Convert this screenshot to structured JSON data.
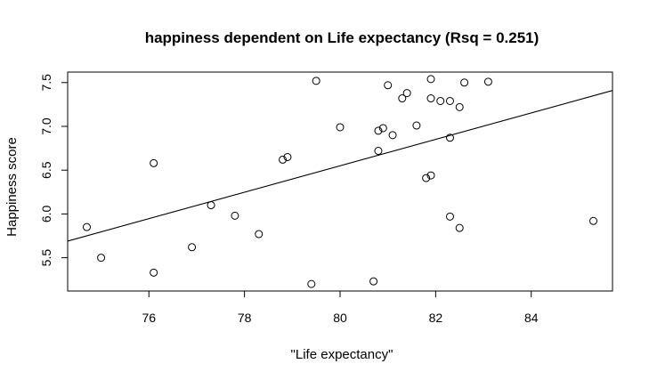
{
  "chart_data": {
    "type": "scatter",
    "title": "happiness dependent on Life expectancy (Rsq = 0.251)",
    "xlabel": "\"Life expectancy\"",
    "ylabel": "Happiness score",
    "xlim": [
      74.3,
      85.7
    ],
    "ylim": [
      5.12,
      7.62
    ],
    "x_ticks": [
      76,
      78,
      80,
      82,
      84
    ],
    "x_tick_labels": [
      "76",
      "78",
      "80",
      "82",
      "84"
    ],
    "y_ticks": [
      5.5,
      6.0,
      6.5,
      7.0,
      7.5
    ],
    "y_tick_labels": [
      "5.5",
      "6.0",
      "6.5",
      "7.0",
      "7.5"
    ],
    "grid": false,
    "legend": "none",
    "points": [
      {
        "x": 74.7,
        "y": 5.85
      },
      {
        "x": 75.0,
        "y": 5.5
      },
      {
        "x": 76.1,
        "y": 6.58
      },
      {
        "x": 76.1,
        "y": 5.33
      },
      {
        "x": 76.9,
        "y": 5.62
      },
      {
        "x": 77.3,
        "y": 6.1
      },
      {
        "x": 77.8,
        "y": 5.98
      },
      {
        "x": 78.3,
        "y": 5.77
      },
      {
        "x": 78.8,
        "y": 6.62
      },
      {
        "x": 78.9,
        "y": 6.65
      },
      {
        "x": 79.4,
        "y": 5.2
      },
      {
        "x": 79.5,
        "y": 7.52
      },
      {
        "x": 80.0,
        "y": 6.99
      },
      {
        "x": 80.7,
        "y": 5.23
      },
      {
        "x": 80.8,
        "y": 6.95
      },
      {
        "x": 80.8,
        "y": 6.72
      },
      {
        "x": 80.9,
        "y": 6.98
      },
      {
        "x": 81.0,
        "y": 7.47
      },
      {
        "x": 81.1,
        "y": 6.9
      },
      {
        "x": 81.3,
        "y": 7.32
      },
      {
        "x": 81.4,
        "y": 7.38
      },
      {
        "x": 81.6,
        "y": 7.01
      },
      {
        "x": 81.8,
        "y": 6.41
      },
      {
        "x": 81.9,
        "y": 6.44
      },
      {
        "x": 81.9,
        "y": 7.32
      },
      {
        "x": 81.9,
        "y": 7.54
      },
      {
        "x": 82.1,
        "y": 7.29
      },
      {
        "x": 82.3,
        "y": 7.29
      },
      {
        "x": 82.3,
        "y": 6.87
      },
      {
        "x": 82.3,
        "y": 5.97
      },
      {
        "x": 82.5,
        "y": 7.22
      },
      {
        "x": 82.5,
        "y": 5.84
      },
      {
        "x": 82.6,
        "y": 7.5
      },
      {
        "x": 83.1,
        "y": 7.51
      },
      {
        "x": 85.3,
        "y": 5.92
      }
    ],
    "regression_line": {
      "x": [
        74.3,
        85.7
      ],
      "y": [
        5.69,
        7.41
      ]
    }
  }
}
